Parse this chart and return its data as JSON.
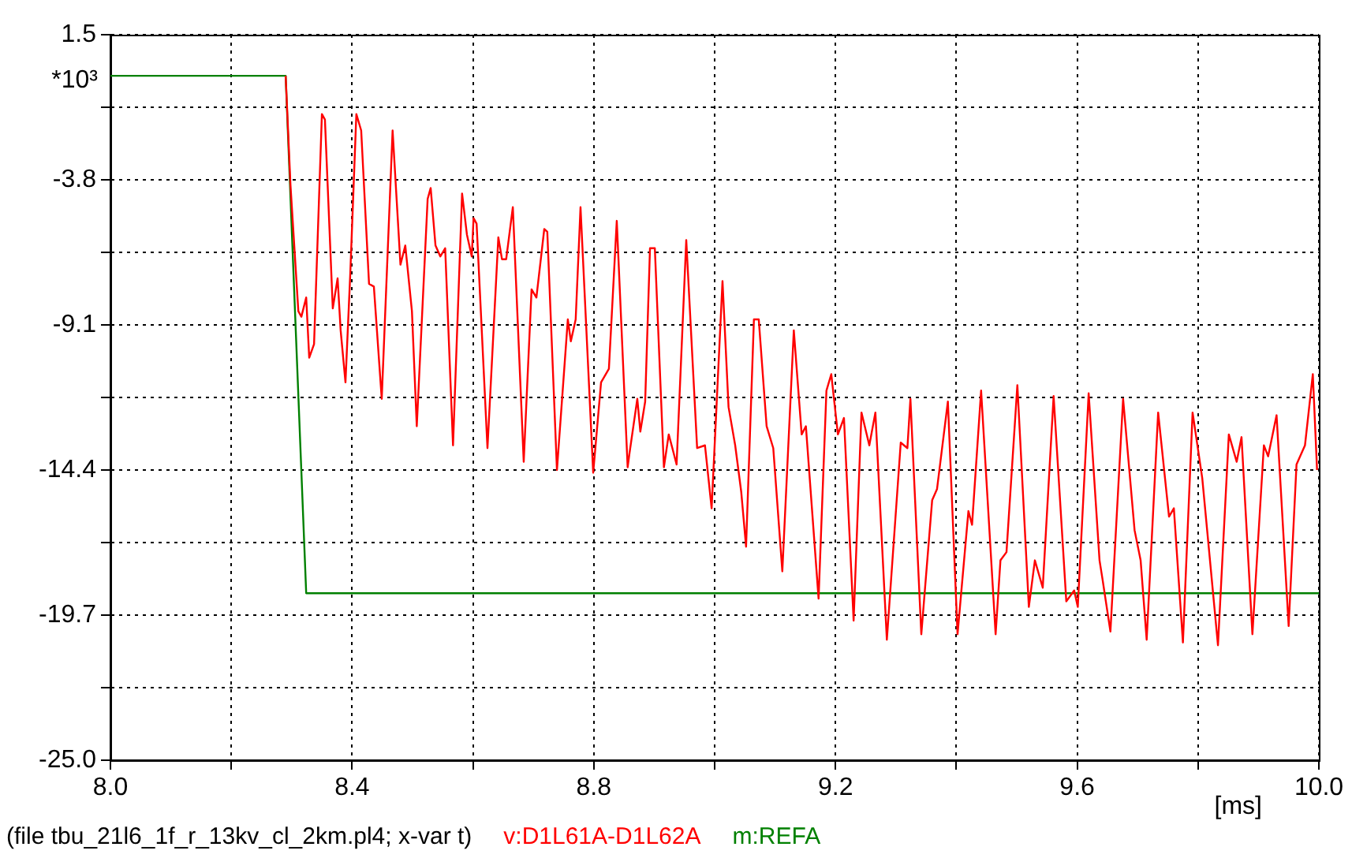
{
  "chart_data": {
    "type": "line",
    "xlabel": "[ms]",
    "ylabel": "*10³",
    "annotations": [
      "(file tbu_21l6_1f_r_13kv_cl_2km.pl4; x-var t)"
    ],
    "xlim": [
      8,
      10
    ],
    "xticks": [
      {
        "value": 8,
        "label": "8.0"
      },
      {
        "value": 8.2,
        "label": null
      },
      8.4,
      {
        "value": 8.6,
        "label": null
      },
      8.8,
      {
        "value": 9,
        "label": null
      },
      9.2,
      {
        "value": 9.4,
        "label": null
      },
      9.6,
      {
        "value": 9.8,
        "label": null
      },
      {
        "value": 10,
        "label": "10.0"
      }
    ],
    "ylim": [
      -25,
      1.5
    ],
    "yticks": [
      1.5,
      {
        "value": -1.15,
        "label": null
      },
      -3.8,
      {
        "value": -6.45,
        "label": null
      },
      -9.1,
      {
        "value": -11.75,
        "label": null
      },
      -14.4,
      {
        "value": -17.05,
        "label": null
      },
      -19.7,
      {
        "value": -22.35,
        "label": null
      },
      {
        "value": -25,
        "label": "-25.0"
      }
    ],
    "grid": true,
    "legend": "bottom",
    "marker": "none",
    "line_style": "solid",
    "series": [
      {
        "name": "v:D1L61A-D1L62A",
        "color": "#ff0000",
        "x": [
          8.29,
          8.298,
          8.311,
          8.316,
          8.324,
          8.329,
          8.337,
          8.35,
          8.355,
          8.368,
          8.376,
          8.381,
          8.389,
          8.397,
          8.407,
          8.415,
          8.428,
          8.436,
          8.449,
          8.467,
          8.48,
          8.488,
          8.499,
          8.507,
          8.525,
          8.53,
          8.538,
          8.546,
          8.554,
          8.567,
          8.582,
          8.59,
          8.598,
          8.601,
          8.606,
          8.624,
          8.642,
          8.648,
          8.655,
          8.666,
          8.684,
          8.697,
          8.705,
          8.718,
          8.723,
          8.739,
          8.757,
          8.762,
          8.77,
          8.778,
          8.799,
          8.812,
          8.825,
          8.838,
          8.856,
          8.859,
          8.872,
          8.877,
          8.885,
          8.893,
          8.901,
          8.916,
          8.924,
          8.93,
          8.937,
          8.953,
          8.971,
          8.984,
          8.995,
          9.013,
          9.023,
          9.034,
          9.044,
          9.052,
          9.065,
          9.073,
          9.086,
          9.097,
          9.112,
          9.131,
          9.144,
          9.151,
          9.172,
          9.185,
          9.193,
          9.204,
          9.214,
          9.23,
          9.243,
          9.256,
          9.266,
          9.285,
          9.308,
          9.319,
          9.324,
          9.342,
          9.36,
          9.368,
          9.386,
          9.402,
          9.42,
          9.426,
          9.441,
          9.465,
          9.473,
          9.483,
          9.501,
          9.52,
          9.53,
          9.543,
          9.561,
          9.582,
          9.595,
          9.601,
          9.619,
          9.637,
          9.642,
          9.655,
          9.676,
          9.695,
          9.705,
          9.715,
          9.734,
          9.752,
          9.76,
          9.775,
          9.791,
          9.807,
          9.833,
          9.851,
          9.864,
          9.872,
          9.89,
          9.909,
          9.916,
          9.93,
          9.95,
          9.963,
          9.977,
          9.99,
          9.997
        ],
        "values": [
          0,
          -4.0,
          -8.6,
          -8.8,
          -8.1,
          -10.3,
          -9.8,
          -1.4,
          -1.6,
          -8.5,
          -7.4,
          -9.3,
          -11.2,
          -7.2,
          -1.4,
          -2.0,
          -7.6,
          -7.7,
          -11.8,
          -2.0,
          -6.9,
          -6.2,
          -8.6,
          -12.8,
          -4.5,
          -4.1,
          -6.2,
          -6.6,
          -6.3,
          -13.5,
          -4.3,
          -5.8,
          -6.6,
          -5.2,
          -5.4,
          -13.6,
          -5.9,
          -6.7,
          -6.7,
          -4.8,
          -14.1,
          -7.8,
          -8.1,
          -5.6,
          -5.7,
          -14.4,
          -8.9,
          -9.7,
          -8.9,
          -4.8,
          -14.5,
          -11.2,
          -10.7,
          -5.3,
          -14.3,
          -13.8,
          -11.8,
          -13.0,
          -11.9,
          -6.3,
          -6.3,
          -14.3,
          -13.1,
          -13.6,
          -14.2,
          -6.0,
          -13.6,
          -13.5,
          -15.8,
          -7.5,
          -12.1,
          -13.5,
          -15.2,
          -17.2,
          -8.9,
          -8.9,
          -12.8,
          -13.6,
          -18.1,
          -9.3,
          -13.1,
          -12.8,
          -19.1,
          -11.5,
          -10.9,
          -13.1,
          -12.5,
          -19.9,
          -12.3,
          -13.5,
          -12.3,
          -20.6,
          -13.4,
          -13.6,
          -11.8,
          -20.4,
          -15.5,
          -15.1,
          -11.9,
          -20.4,
          -15.9,
          -16.4,
          -11.5,
          -20.4,
          -17.7,
          -17.4,
          -11.3,
          -19.4,
          -17.7,
          -18.7,
          -11.7,
          -19.2,
          -18.8,
          -19.4,
          -11.6,
          -17.7,
          -18.4,
          -20.3,
          -11.8,
          -16.6,
          -17.7,
          -20.6,
          -12.3,
          -16.1,
          -15.8,
          -20.7,
          -12.3,
          -14.7,
          -20.8,
          -13.1,
          -14.1,
          -13.2,
          -20.4,
          -13.5,
          -13.9,
          -12.4,
          -20.1,
          -14.2,
          -13.5,
          -10.9,
          -14.4
        ]
      },
      {
        "name": "m:REFA",
        "color": "#008000",
        "x": [
          8,
          8.29,
          8.324,
          10
        ],
        "values": [
          0,
          0,
          -18.9,
          -18.9
        ]
      }
    ]
  }
}
